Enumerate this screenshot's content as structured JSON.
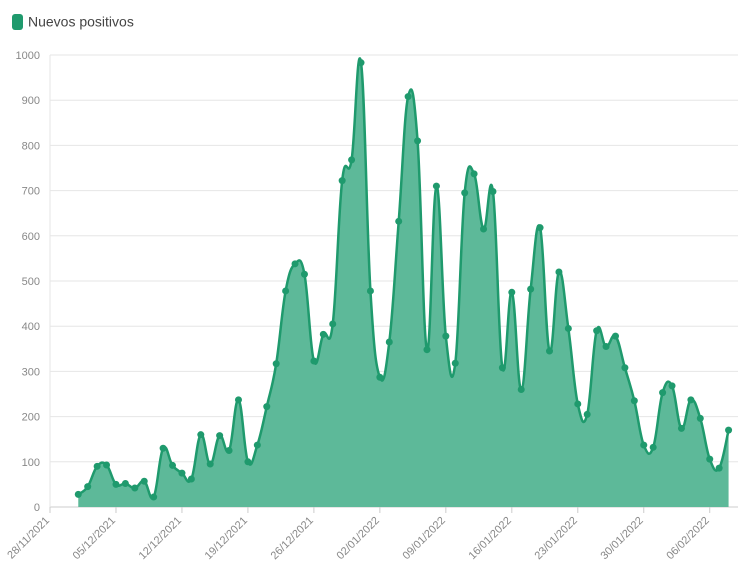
{
  "chart_data": {
    "type": "area",
    "legend_position": "top-left",
    "grid": true,
    "series": [
      {
        "name": "Nuevos positivos",
        "color": "#1f9a6d",
        "fill": "#5db999",
        "x": [
          "01/12/2021",
          "02/12/2021",
          "03/12/2021",
          "04/12/2021",
          "05/12/2021",
          "06/12/2021",
          "07/12/2021",
          "08/12/2021",
          "09/12/2021",
          "10/12/2021",
          "11/12/2021",
          "12/12/2021",
          "13/12/2021",
          "14/12/2021",
          "15/12/2021",
          "16/12/2021",
          "17/12/2021",
          "18/12/2021",
          "19/12/2021",
          "20/12/2021",
          "21/12/2021",
          "22/12/2021",
          "23/12/2021",
          "24/12/2021",
          "25/12/2021",
          "26/12/2021",
          "27/12/2021",
          "28/12/2021",
          "29/12/2021",
          "30/12/2021",
          "31/12/2021",
          "01/01/2022",
          "02/01/2022",
          "03/01/2022",
          "04/01/2022",
          "05/01/2022",
          "06/01/2022",
          "07/01/2022",
          "08/01/2022",
          "09/01/2022",
          "10/01/2022",
          "11/01/2022",
          "12/01/2022",
          "13/01/2022",
          "14/01/2022",
          "15/01/2022",
          "16/01/2022",
          "17/01/2022",
          "18/01/2022",
          "19/01/2022",
          "20/01/2022",
          "21/01/2022",
          "22/01/2022",
          "23/01/2022",
          "24/01/2022",
          "25/01/2022",
          "26/01/2022",
          "27/01/2022",
          "28/01/2022",
          "29/01/2022",
          "30/01/2022",
          "31/01/2022",
          "01/02/2022",
          "02/02/2022",
          "03/02/2022",
          "04/02/2022",
          "05/02/2022",
          "06/02/2022",
          "07/02/2022",
          "08/02/2022"
        ],
        "values": [
          28,
          45,
          90,
          93,
          50,
          52,
          42,
          57,
          22,
          130,
          92,
          75,
          62,
          160,
          95,
          158,
          125,
          237,
          100,
          137,
          222,
          317,
          478,
          538,
          515,
          323,
          382,
          405,
          722,
          768,
          983,
          478,
          287,
          365,
          632,
          908,
          810,
          348,
          710,
          378,
          318,
          695,
          737,
          615,
          698,
          308,
          475,
          260,
          482,
          618,
          345,
          520,
          395,
          228,
          205,
          390,
          355,
          378,
          308,
          235,
          137,
          132,
          253,
          268,
          174,
          237,
          196,
          106,
          86,
          170
        ]
      }
    ],
    "xlim": [
      "28/11/2021",
      "09/02/2022"
    ],
    "xticks": [
      "28/11/2021",
      "05/12/2021",
      "12/12/2021",
      "19/12/2021",
      "26/12/2021",
      "02/01/2022",
      "09/01/2022",
      "16/01/2022",
      "23/01/2022",
      "30/01/2022",
      "06/02/2022"
    ],
    "ylim": [
      0,
      1000
    ],
    "yticks": [
      0,
      100,
      200,
      300,
      400,
      500,
      600,
      700,
      800,
      900,
      1000
    ]
  }
}
